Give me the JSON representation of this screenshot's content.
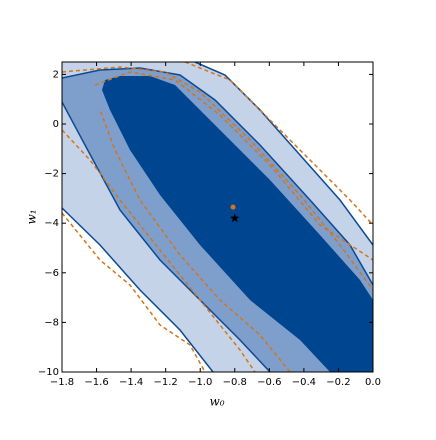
{
  "chart_data": {
    "type": "contour",
    "xlabel": "w₀",
    "ylabel": "w₁",
    "xlim": [
      -1.8,
      0
    ],
    "ylim": [
      -10,
      2.5
    ],
    "xticks": [
      {
        "value": -1.8,
        "label": "−1.8"
      },
      {
        "value": -1.6,
        "label": "−1.6"
      },
      {
        "value": -1.4,
        "label": "−1.4"
      },
      {
        "value": -1.2,
        "label": "−1.2"
      },
      {
        "value": -1.0,
        "label": "−1.0"
      },
      {
        "value": -0.8,
        "label": "−0.8"
      },
      {
        "value": -0.6,
        "label": "−0.6"
      },
      {
        "value": -0.4,
        "label": "−0.4"
      },
      {
        "value": -0.2,
        "label": "−0.2"
      },
      {
        "value": 0,
        "label": "0.0"
      }
    ],
    "yticks": [
      2,
      0,
      {
        "value": -2,
        "label": "−2"
      },
      {
        "value": -4,
        "label": "−4"
      },
      {
        "value": -6,
        "label": "−6"
      },
      {
        "value": -8,
        "label": "−8"
      },
      {
        "value": -10,
        "label": "−10"
      }
    ],
    "series": [
      {
        "marker": "circle",
        "color": "#d4741c",
        "x": [
          -0.81
        ],
        "values": [
          -3.35
        ]
      },
      {
        "marker": "star",
        "color": "#000000",
        "x": [
          -0.8
        ],
        "values": [
          -3.8
        ]
      }
    ]
  }
}
